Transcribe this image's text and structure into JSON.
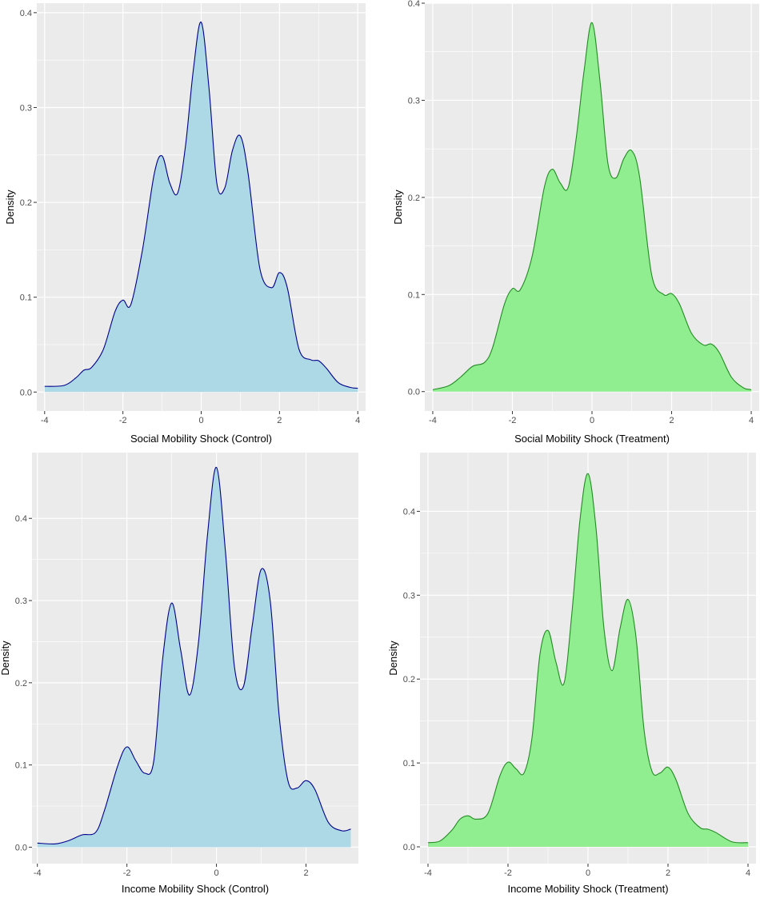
{
  "chart_data": [
    {
      "type": "area",
      "xlabel": "Social Mobility Shock (Control)",
      "ylabel": "Density",
      "xlim": [
        -4.2,
        4.2
      ],
      "ylim": [
        -0.02,
        0.41
      ],
      "xticks": [
        -4,
        -2,
        0,
        2,
        4
      ],
      "yticks": [
        0.0,
        0.1,
        0.2,
        0.3,
        0.4
      ],
      "xtick_labels": [
        "-4",
        "-2",
        "0",
        "2",
        "4"
      ],
      "ytick_labels": [
        "0.0",
        "0.1",
        "0.2",
        "0.3",
        "0.4"
      ],
      "grid": true,
      "fill_color": "#add8e6",
      "line_color": "#00008b",
      "series": [
        {
          "x": [
            -4,
            -3.5,
            -3.2,
            -3,
            -2.8,
            -2.5,
            -2.2,
            -2,
            -1.8,
            -1.5,
            -1.2,
            -1,
            -0.8,
            -0.6,
            -0.4,
            -0.2,
            0,
            0.2,
            0.4,
            0.6,
            0.8,
            1,
            1.2,
            1.5,
            1.8,
            2,
            2.2,
            2.5,
            2.8,
            3,
            3.2,
            3.5,
            3.8,
            4
          ],
          "y": [
            0.006,
            0.007,
            0.015,
            0.023,
            0.026,
            0.045,
            0.085,
            0.097,
            0.092,
            0.15,
            0.23,
            0.249,
            0.22,
            0.21,
            0.26,
            0.34,
            0.39,
            0.32,
            0.22,
            0.215,
            0.255,
            0.27,
            0.23,
            0.13,
            0.11,
            0.126,
            0.11,
            0.045,
            0.034,
            0.033,
            0.025,
            0.01,
            0.005,
            0.004
          ]
        }
      ]
    },
    {
      "type": "area",
      "xlabel": "Social Mobility Shock (Treatment)",
      "ylabel": "Density",
      "xlim": [
        -4.2,
        4.2
      ],
      "ylim": [
        -0.02,
        0.4
      ],
      "xticks": [
        -4,
        -2,
        0,
        2,
        4
      ],
      "yticks": [
        0.0,
        0.1,
        0.2,
        0.3,
        0.4
      ],
      "xtick_labels": [
        "-4",
        "-2",
        "0",
        "2",
        "4"
      ],
      "ytick_labels": [
        "0.0",
        "0.1",
        "0.2",
        "0.3",
        "0.4"
      ],
      "grid": true,
      "fill_color": "#90ee90",
      "line_color": "#228b22",
      "series": [
        {
          "x": [
            -4,
            -3.6,
            -3.3,
            -3,
            -2.7,
            -2.5,
            -2.2,
            -2,
            -1.8,
            -1.5,
            -1.2,
            -1,
            -0.8,
            -0.6,
            -0.4,
            -0.2,
            0,
            0.2,
            0.4,
            0.6,
            0.8,
            1,
            1.2,
            1.5,
            1.8,
            2,
            2.2,
            2.5,
            2.8,
            3,
            3.2,
            3.5,
            3.8,
            4
          ],
          "y": [
            0.002,
            0.006,
            0.015,
            0.026,
            0.03,
            0.045,
            0.09,
            0.106,
            0.105,
            0.14,
            0.21,
            0.229,
            0.215,
            0.21,
            0.26,
            0.33,
            0.38,
            0.32,
            0.235,
            0.22,
            0.24,
            0.248,
            0.22,
            0.12,
            0.1,
            0.101,
            0.09,
            0.06,
            0.048,
            0.049,
            0.04,
            0.015,
            0.004,
            0.002
          ]
        }
      ]
    },
    {
      "type": "area",
      "xlabel": "Income Mobility Shock (Control)",
      "ylabel": "Density",
      "xlim": [
        -4.12,
        3.17
      ],
      "ylim": [
        -0.02,
        0.48
      ],
      "xticks": [
        -4,
        -2,
        0,
        2
      ],
      "yticks": [
        0.0,
        0.1,
        0.2,
        0.3,
        0.4
      ],
      "xtick_labels": [
        "-4",
        "-2",
        "0",
        "2"
      ],
      "ytick_labels": [
        "0.0",
        "0.1",
        "0.2",
        "0.3",
        "0.4"
      ],
      "grid": true,
      "fill_color": "#add8e6",
      "line_color": "#00008b",
      "series": [
        {
          "x": [
            -4,
            -3.6,
            -3.3,
            -3,
            -2.7,
            -2.5,
            -2.2,
            -2,
            -1.8,
            -1.6,
            -1.4,
            -1.2,
            -1,
            -0.8,
            -0.6,
            -0.4,
            -0.2,
            0,
            0.2,
            0.4,
            0.6,
            0.8,
            1,
            1.2,
            1.4,
            1.6,
            1.8,
            2,
            2.2,
            2.5,
            2.8,
            3
          ],
          "y": [
            0.005,
            0.004,
            0.008,
            0.015,
            0.018,
            0.045,
            0.1,
            0.122,
            0.105,
            0.09,
            0.105,
            0.23,
            0.297,
            0.24,
            0.185,
            0.25,
            0.38,
            0.462,
            0.36,
            0.22,
            0.195,
            0.27,
            0.338,
            0.3,
            0.16,
            0.08,
            0.072,
            0.081,
            0.07,
            0.03,
            0.02,
            0.022
          ]
        }
      ]
    },
    {
      "type": "area",
      "xlabel": "Income Mobility Shock (Treatment)",
      "ylabel": "Density",
      "xlim": [
        -4.2,
        4.2
      ],
      "ylim": [
        -0.02,
        0.47
      ],
      "xticks": [
        -4,
        -2,
        0,
        2,
        4
      ],
      "yticks": [
        0.0,
        0.1,
        0.2,
        0.3,
        0.4
      ],
      "xtick_labels": [
        "-4",
        "-2",
        "0",
        "2",
        "4"
      ],
      "ytick_labels": [
        "0.0",
        "0.1",
        "0.2",
        "0.3",
        "0.4"
      ],
      "grid": true,
      "fill_color": "#90ee90",
      "line_color": "#228b22",
      "series": [
        {
          "x": [
            -4,
            -3.7,
            -3.4,
            -3.2,
            -3,
            -2.8,
            -2.5,
            -2.2,
            -2,
            -1.8,
            -1.6,
            -1.4,
            -1.2,
            -1,
            -0.8,
            -0.6,
            -0.4,
            -0.2,
            0,
            0.2,
            0.4,
            0.6,
            0.8,
            1,
            1.2,
            1.4,
            1.6,
            1.8,
            2,
            2.2,
            2.5,
            2.8,
            3,
            3.2,
            3.6,
            4
          ],
          "y": [
            0.005,
            0.007,
            0.02,
            0.033,
            0.037,
            0.033,
            0.04,
            0.085,
            0.101,
            0.093,
            0.088,
            0.13,
            0.23,
            0.258,
            0.22,
            0.195,
            0.28,
            0.39,
            0.445,
            0.38,
            0.26,
            0.21,
            0.26,
            0.295,
            0.25,
            0.14,
            0.09,
            0.088,
            0.095,
            0.08,
            0.04,
            0.023,
            0.021,
            0.017,
            0.006,
            0.005
          ]
        }
      ]
    }
  ]
}
